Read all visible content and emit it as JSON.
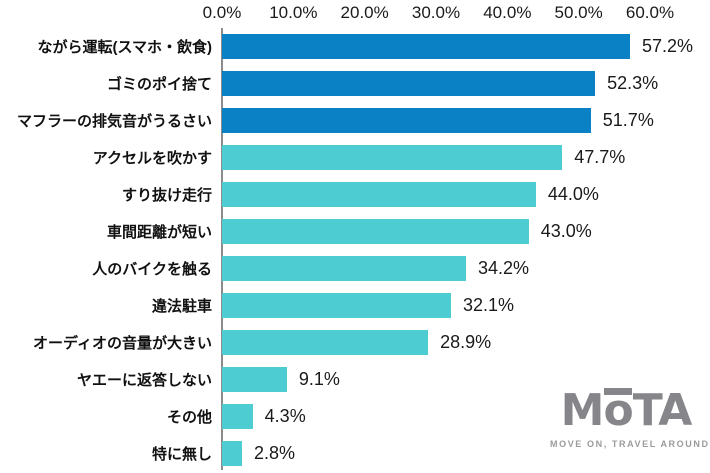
{
  "chart_data": {
    "type": "bar",
    "orientation": "horizontal",
    "title": "",
    "xlabel": "",
    "ylabel": "",
    "xlim": [
      0,
      60
    ],
    "x_ticks": [
      "0.0%",
      "10.0%",
      "20.0%",
      "30.0%",
      "40.0%",
      "50.0%",
      "60.0%"
    ],
    "grid": false,
    "legend": "none",
    "categories": [
      "ながら運転(スマホ・飲食)",
      "ゴミのポイ捨て",
      "マフラーの排気音がうるさい",
      "アクセルを吹かす",
      "すり抜け走行",
      "車間距離が短い",
      "人のバイクを触る",
      "違法駐車",
      "オーディオの音量が大きい",
      "ヤエーに返答しない",
      "その他",
      "特に無し"
    ],
    "values": [
      57.2,
      52.3,
      51.7,
      47.7,
      44.0,
      43.0,
      34.2,
      32.1,
      28.9,
      9.1,
      4.3,
      2.8
    ],
    "value_labels": [
      "57.2%",
      "52.3%",
      "51.7%",
      "47.7%",
      "44.0%",
      "43.0%",
      "34.2%",
      "32.1%",
      "28.9%",
      "9.1%",
      "4.3%",
      "2.8%"
    ],
    "bar_colors": [
      "#0a81c4",
      "#0a81c4",
      "#0a81c4",
      "#4dcdd1",
      "#4dcdd1",
      "#4dcdd1",
      "#4dcdd1",
      "#4dcdd1",
      "#4dcdd1",
      "#4dcdd1",
      "#4dcdd1",
      "#4dcdd1"
    ],
    "colors": {
      "highlight_bar": "#0a81c4",
      "default_bar": "#4dcdd1",
      "axis_line": "#8c8c8c",
      "text": "#1a1a1a"
    }
  },
  "logo": {
    "part_m": "M",
    "part_o": "o",
    "part_ta": "TA",
    "tagline": "MOVE ON, TRAVEL AROUND"
  }
}
